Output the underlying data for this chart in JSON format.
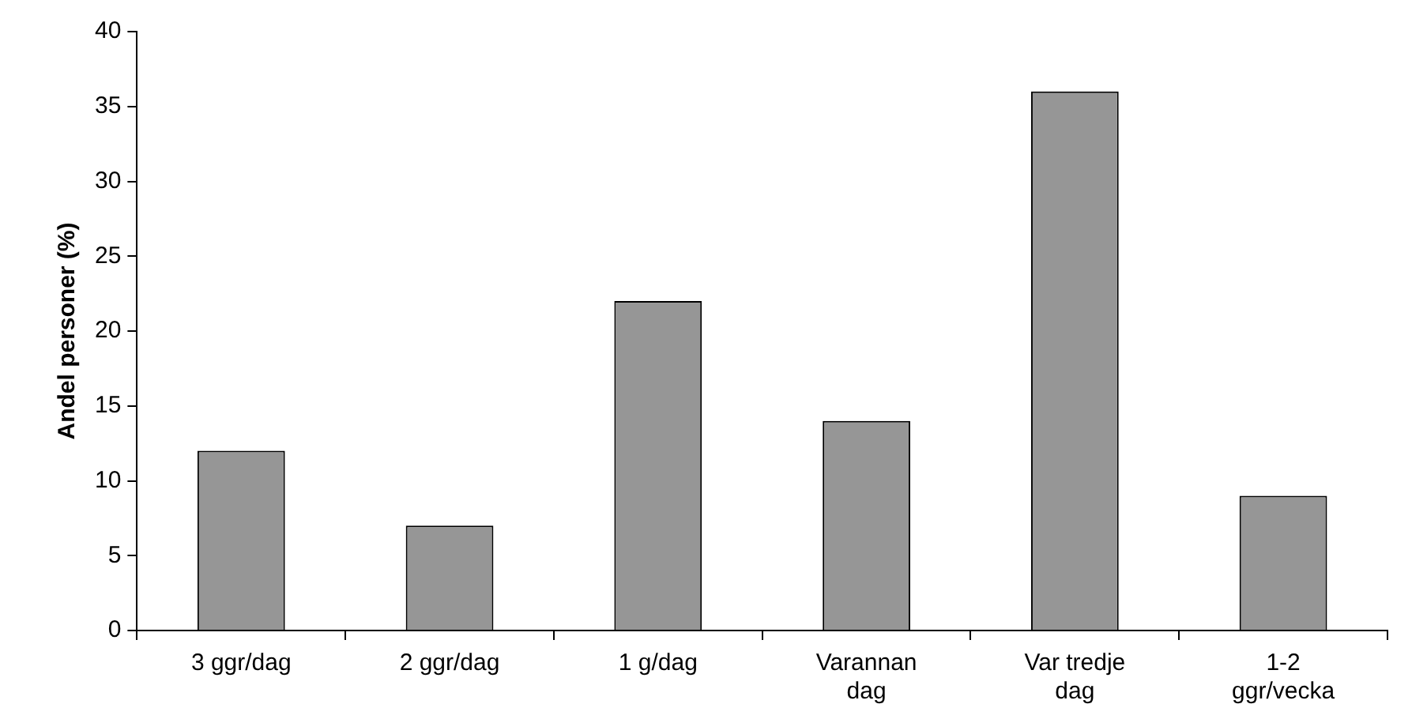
{
  "chart_data": {
    "type": "bar",
    "ylabel": "Andel personer (%)",
    "categories": [
      "3 ggr/dag",
      "2 ggr/dag",
      "1 g/dag",
      "Varannan dag",
      "Var tredje dag",
      "1-2 ggr/vecka"
    ],
    "values": [
      12,
      7,
      22,
      14,
      36,
      9
    ],
    "color": "#969696",
    "ylim": [
      0,
      40
    ],
    "yticks": [
      0,
      5,
      10,
      15,
      20,
      25,
      30,
      35,
      40
    ],
    "grid": false,
    "legend": false
  }
}
